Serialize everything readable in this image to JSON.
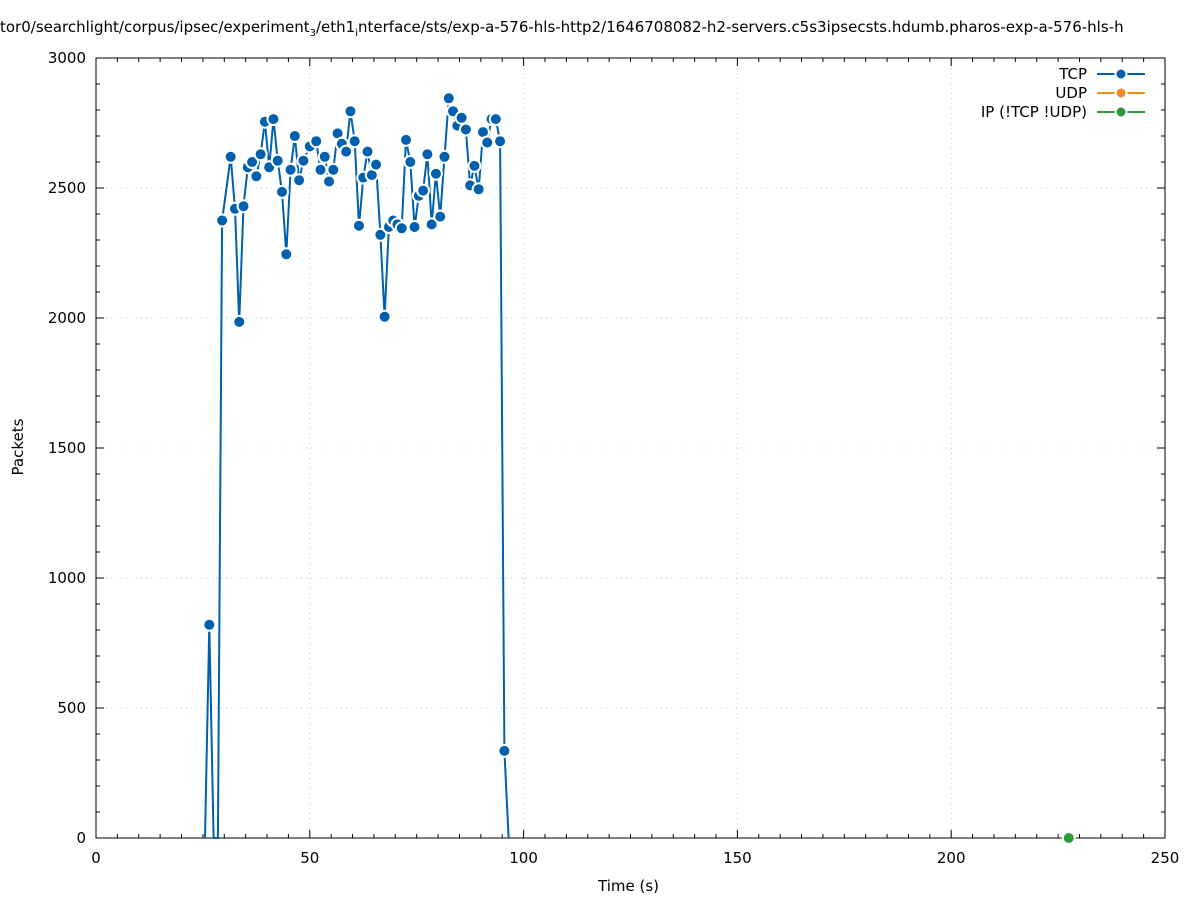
{
  "chart_data": {
    "type": "line",
    "title_parts": {
      "pre": "tor0/searchlight/corpus/ipsec/experiment",
      "sub1": "3",
      "mid": "/eth1",
      "sub2": "i",
      "post": "nterface/sts/exp-a-576-hls-http2/1646708082-h2-servers.c5s3ipsecsts.hdumb.pharos-exp-a-576-hls-h"
    },
    "xlabel": "Time (s)",
    "ylabel": "Packets",
    "xlim": [
      0,
      250
    ],
    "ylim": [
      0,
      3000
    ],
    "xticks": [
      "0",
      "50",
      "100",
      "150",
      "200",
      "250"
    ],
    "yticks": [
      "0",
      "500",
      "1000",
      "1500",
      "2000",
      "2500",
      "3000"
    ],
    "grid": true,
    "legend_position": "top-right",
    "series": [
      {
        "name": "TCP",
        "color": "#0060ad",
        "points": [
          [
            25.5,
            0
          ],
          [
            26.5,
            820
          ],
          [
            27.5,
            0
          ],
          [
            28.5,
            0
          ],
          [
            29.5,
            2375
          ],
          [
            31.5,
            2620
          ],
          [
            32.5,
            2420
          ],
          [
            33.5,
            1985
          ],
          [
            34.5,
            2430
          ],
          [
            35.5,
            2580
          ],
          [
            36.5,
            2600
          ],
          [
            37.5,
            2545
          ],
          [
            38.5,
            2630
          ],
          [
            39.5,
            2755
          ],
          [
            40.5,
            2580
          ],
          [
            41.5,
            2765
          ],
          [
            42.5,
            2605
          ],
          [
            43.5,
            2485
          ],
          [
            44.5,
            2245
          ],
          [
            45.5,
            2570
          ],
          [
            46.5,
            2700
          ],
          [
            47.5,
            2530
          ],
          [
            48.5,
            2605
          ],
          [
            50,
            2660
          ],
          [
            51.5,
            2680
          ],
          [
            52.5,
            2570
          ],
          [
            53.5,
            2620
          ],
          [
            54.5,
            2525
          ],
          [
            55.5,
            2570
          ],
          [
            56.5,
            2710
          ],
          [
            57.5,
            2670
          ],
          [
            58.5,
            2640
          ],
          [
            59.5,
            2795
          ],
          [
            60.5,
            2680
          ],
          [
            61.5,
            2355
          ],
          [
            62.5,
            2540
          ],
          [
            63.5,
            2640
          ],
          [
            64.5,
            2550
          ],
          [
            65.5,
            2590
          ],
          [
            66.5,
            2320
          ],
          [
            67.5,
            2005
          ],
          [
            68.5,
            2350
          ],
          [
            69.5,
            2375
          ],
          [
            70.5,
            2360
          ],
          [
            71.5,
            2345
          ],
          [
            72.5,
            2685
          ],
          [
            73.5,
            2600
          ],
          [
            74.5,
            2350
          ],
          [
            75.5,
            2470
          ],
          [
            76.5,
            2490
          ],
          [
            77.5,
            2630
          ],
          [
            78.5,
            2360
          ],
          [
            79.5,
            2555
          ],
          [
            80.5,
            2390
          ],
          [
            81.5,
            2620
          ],
          [
            82.5,
            2845
          ],
          [
            83.5,
            2795
          ],
          [
            84.5,
            2740
          ],
          [
            85.5,
            2770
          ],
          [
            86.5,
            2725
          ],
          [
            87.5,
            2510
          ],
          [
            88.5,
            2585
          ],
          [
            89.5,
            2495
          ],
          [
            90.5,
            2715
          ],
          [
            91.5,
            2675
          ],
          [
            92.5,
            2765
          ],
          [
            93.5,
            2765
          ],
          [
            94.5,
            2680
          ],
          [
            95.5,
            335
          ],
          [
            96.5,
            0
          ]
        ]
      },
      {
        "name": "UDP",
        "color": "#f08c1b",
        "points": []
      },
      {
        "name": "IP (!TCP  !UDP)",
        "color": "#2a9a3b",
        "points": [
          [
            227.5,
            0
          ]
        ]
      }
    ]
  }
}
